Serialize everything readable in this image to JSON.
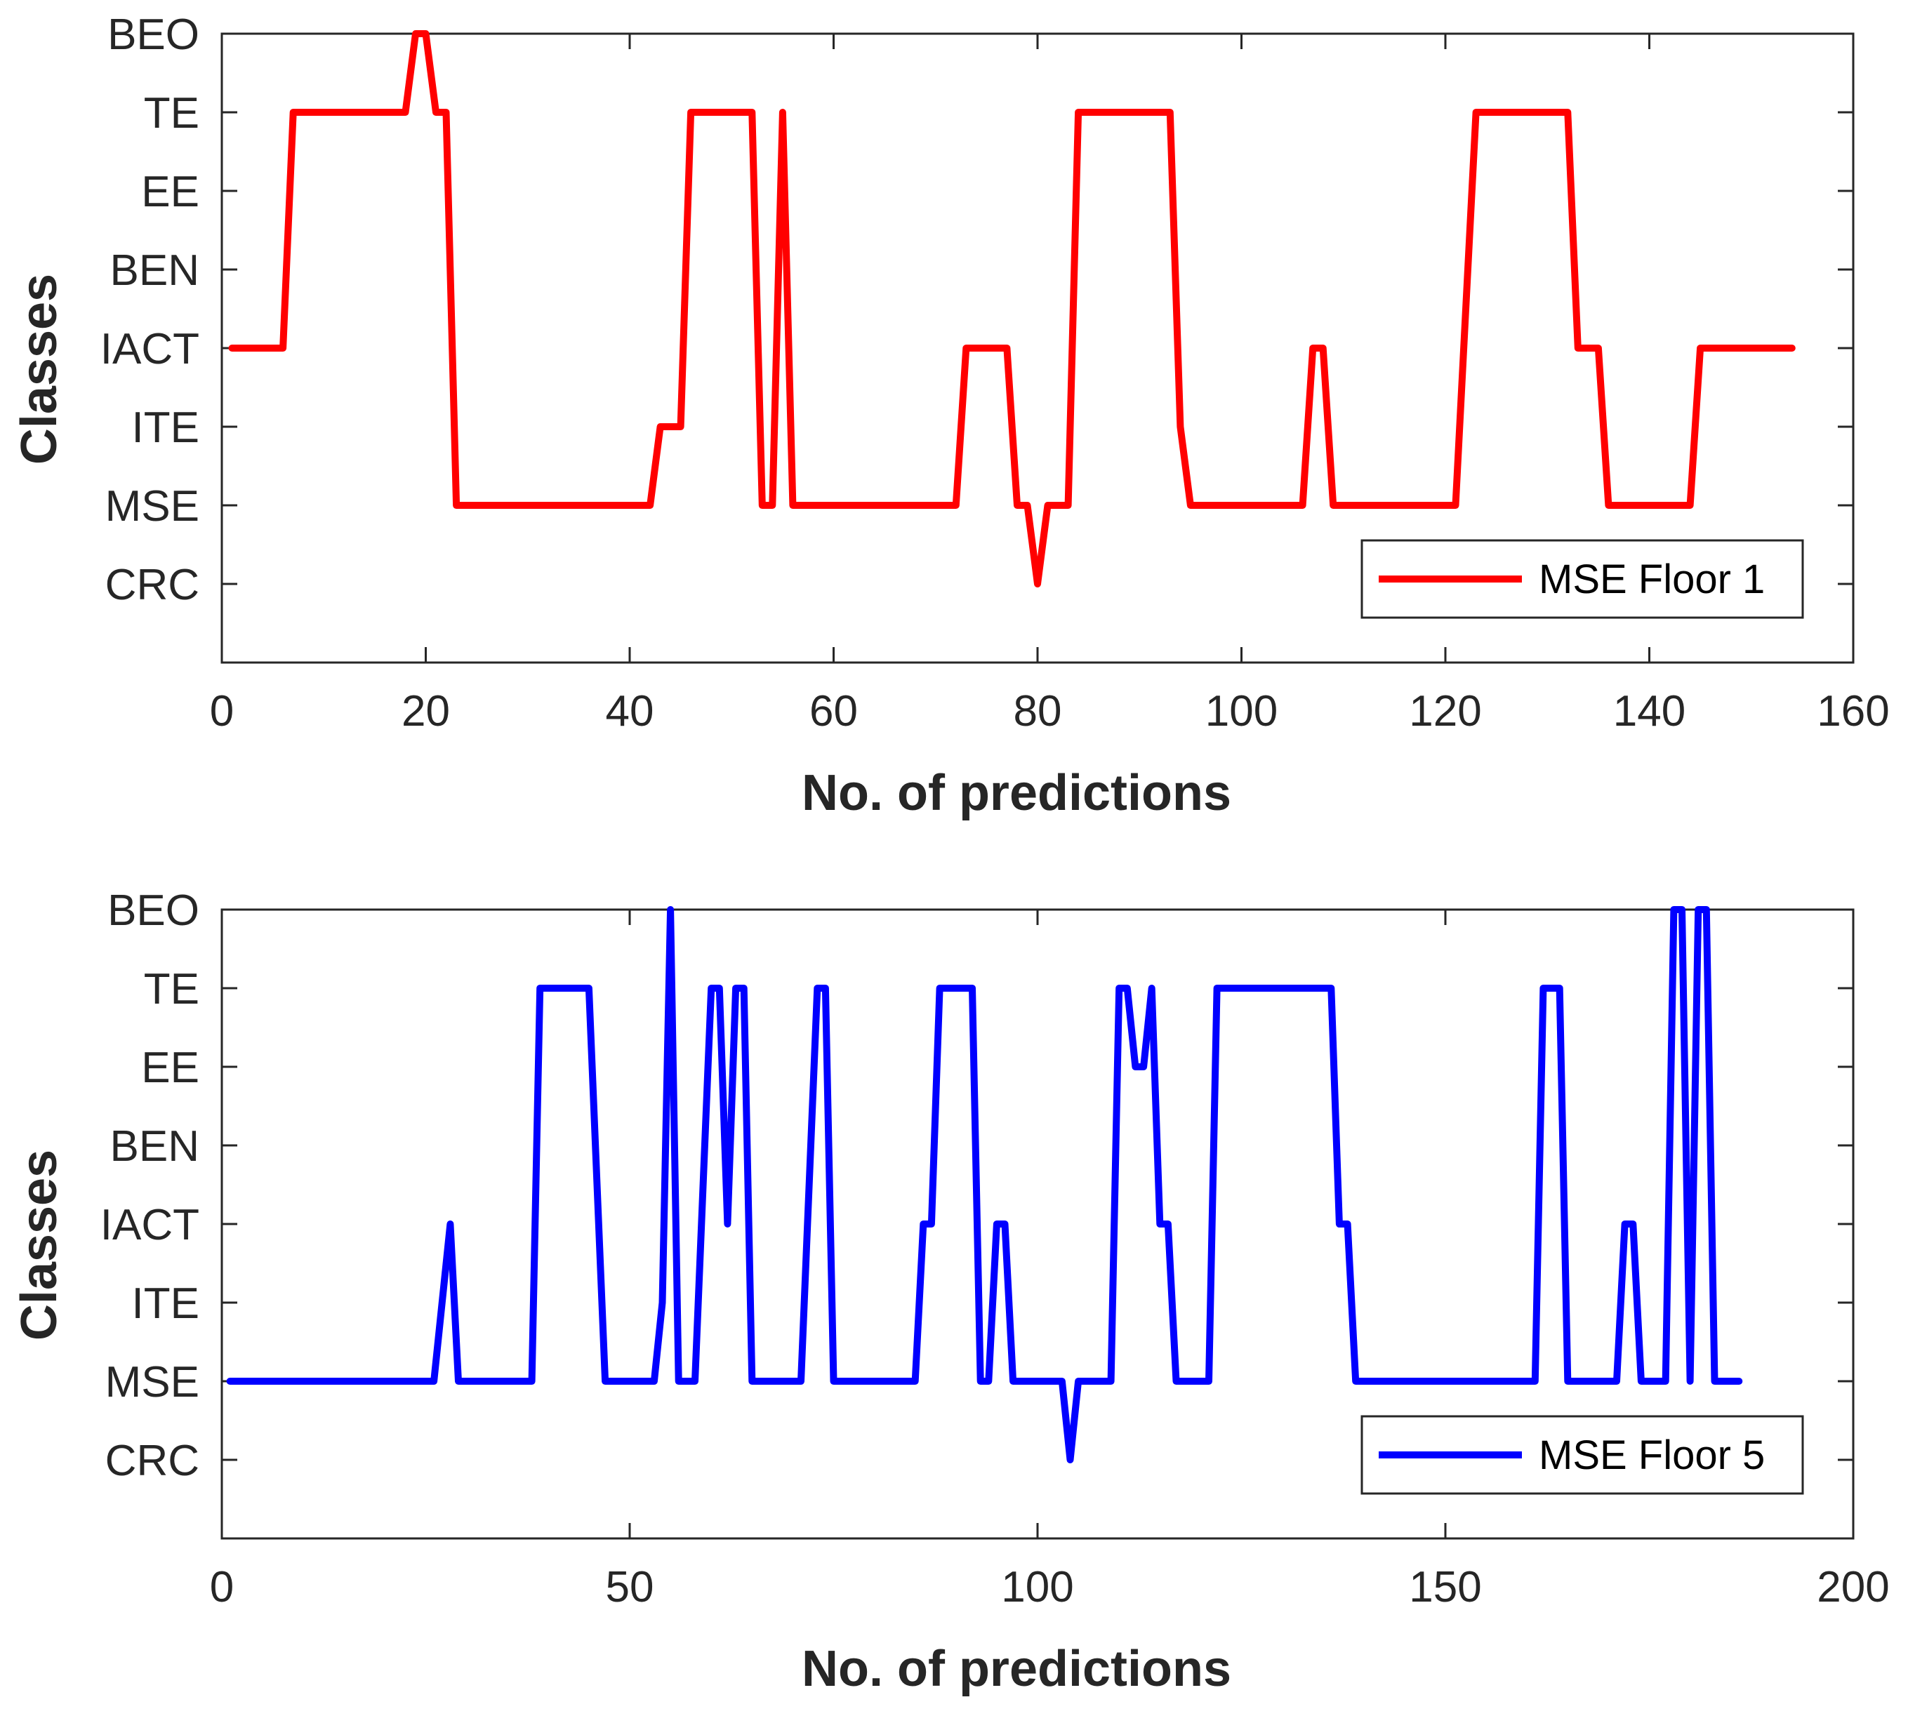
{
  "chart_data": [
    {
      "type": "line",
      "name": "top-chart",
      "xlabel": "No. of predictions",
      "ylabel": "Classes",
      "xlim": [
        0,
        160
      ],
      "xticks": [
        0,
        20,
        40,
        60,
        80,
        100,
        120,
        140,
        160
      ],
      "ylim": [
        0,
        8
      ],
      "yticks": [
        1,
        2,
        3,
        4,
        5,
        6,
        7,
        8
      ],
      "ytick_labels": [
        "CRC",
        "MSE",
        "ITE",
        "IACT",
        "BEN",
        "EE",
        "TE",
        "BEO"
      ],
      "legend": {
        "position": "bottom-right"
      },
      "series": [
        {
          "name": "MSE Floor 1",
          "color": "#ff0000",
          "points": [
            [
              1,
              4
            ],
            [
              6,
              4
            ],
            [
              7,
              7
            ],
            [
              18,
              7
            ],
            [
              19,
              8
            ],
            [
              20,
              8
            ],
            [
              21,
              7
            ],
            [
              22,
              7
            ],
            [
              23,
              2
            ],
            [
              42,
              2
            ],
            [
              43,
              3
            ],
            [
              45,
              3
            ],
            [
              46,
              7
            ],
            [
              52,
              7
            ],
            [
              53,
              2
            ],
            [
              54,
              2
            ],
            [
              55,
              7
            ],
            [
              56,
              2
            ],
            [
              72,
              2
            ],
            [
              73,
              4
            ],
            [
              77,
              4
            ],
            [
              78,
              2
            ],
            [
              79,
              2
            ],
            [
              80,
              1
            ],
            [
              81,
              2
            ],
            [
              83,
              2
            ],
            [
              84,
              7
            ],
            [
              93,
              7
            ],
            [
              94,
              3
            ],
            [
              95,
              2
            ],
            [
              106,
              2
            ],
            [
              107,
              4
            ],
            [
              108,
              4
            ],
            [
              109,
              2
            ],
            [
              121,
              2
            ],
            [
              123,
              7
            ],
            [
              132,
              7
            ],
            [
              133,
              4
            ],
            [
              135,
              4
            ],
            [
              136,
              2
            ],
            [
              144,
              2
            ],
            [
              145,
              4
            ],
            [
              154,
              4
            ]
          ]
        }
      ]
    },
    {
      "type": "line",
      "name": "bottom-chart",
      "xlabel": "No. of predictions",
      "ylabel": "Classes",
      "xlim": [
        0,
        200
      ],
      "xticks": [
        0,
        50,
        100,
        150,
        200
      ],
      "ylim": [
        0,
        8
      ],
      "yticks": [
        1,
        2,
        3,
        4,
        5,
        6,
        7,
        8
      ],
      "ytick_labels": [
        "CRC",
        "MSE",
        "ITE",
        "IACT",
        "BEN",
        "EE",
        "TE",
        "BEO"
      ],
      "legend": {
        "position": "bottom-right"
      },
      "series": [
        {
          "name": "MSE Floor 5",
          "color": "#0000ff",
          "points": [
            [
              1,
              2
            ],
            [
              26,
              2
            ],
            [
              28,
              4
            ],
            [
              29,
              2
            ],
            [
              38,
              2
            ],
            [
              39,
              7
            ],
            [
              45,
              7
            ],
            [
              47,
              2
            ],
            [
              53,
              2
            ],
            [
              54,
              3
            ],
            [
              55,
              8
            ],
            [
              56,
              2
            ],
            [
              58,
              2
            ],
            [
              60,
              7
            ],
            [
              61,
              7
            ],
            [
              62,
              4
            ],
            [
              63,
              7
            ],
            [
              64,
              7
            ],
            [
              65,
              2
            ],
            [
              71,
              2
            ],
            [
              73,
              7
            ],
            [
              74,
              7
            ],
            [
              75,
              2
            ],
            [
              85,
              2
            ],
            [
              86,
              4
            ],
            [
              87,
              4
            ],
            [
              88,
              7
            ],
            [
              92,
              7
            ],
            [
              93,
              2
            ],
            [
              94,
              2
            ],
            [
              95,
              4
            ],
            [
              96,
              4
            ],
            [
              97,
              2
            ],
            [
              103,
              2
            ],
            [
              104,
              1
            ],
            [
              105,
              2
            ],
            [
              109,
              2
            ],
            [
              110,
              7
            ],
            [
              111,
              7
            ],
            [
              112,
              6
            ],
            [
              113,
              6
            ],
            [
              114,
              7
            ],
            [
              115,
              4
            ],
            [
              116,
              4
            ],
            [
              117,
              2
            ],
            [
              121,
              2
            ],
            [
              122,
              7
            ],
            [
              136,
              7
            ],
            [
              137,
              4
            ],
            [
              138,
              4
            ],
            [
              139,
              2
            ],
            [
              161,
              2
            ],
            [
              162,
              7
            ],
            [
              164,
              7
            ],
            [
              165,
              2
            ],
            [
              171,
              2
            ],
            [
              172,
              4
            ],
            [
              173,
              4
            ],
            [
              174,
              2
            ],
            [
              177,
              2
            ],
            [
              178,
              8
            ],
            [
              179,
              8
            ],
            [
              180,
              2
            ],
            [
              181,
              8
            ],
            [
              182,
              8
            ],
            [
              183,
              2
            ],
            [
              186,
              2
            ]
          ]
        }
      ]
    }
  ]
}
